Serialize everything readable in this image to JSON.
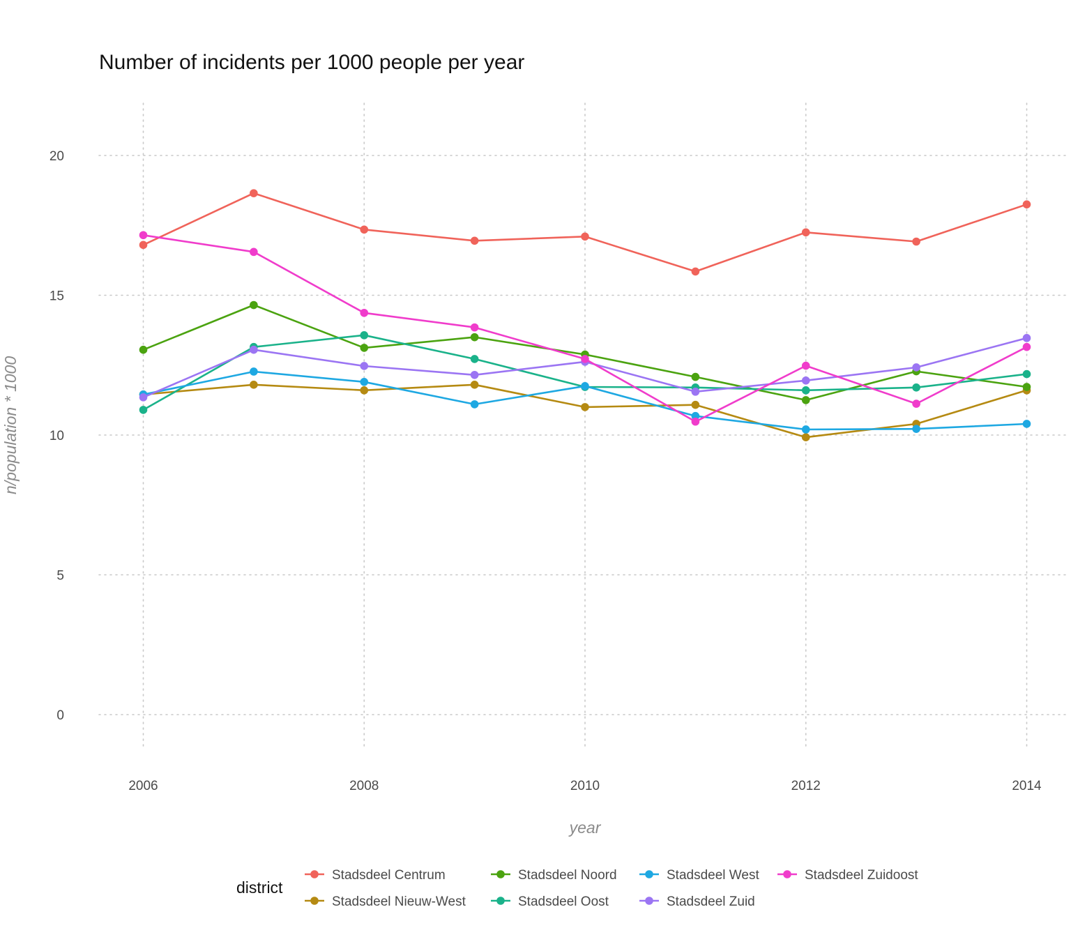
{
  "chart_data": {
    "type": "line",
    "title": "Number of incidents per 1000 people per year",
    "xlabel": "year",
    "ylabel": "n/population * 1000",
    "x": [
      2006,
      2007,
      2008,
      2009,
      2010,
      2011,
      2012,
      2013,
      2014
    ],
    "x_ticks": [
      2006,
      2008,
      2010,
      2012,
      2014
    ],
    "y_ticks": [
      0,
      5,
      10,
      15,
      20
    ],
    "xlim": [
      2005.8,
      2014.2
    ],
    "ylim": [
      -1,
      22
    ],
    "grid": true,
    "legend_title": "district",
    "legend_position": "bottom",
    "series": [
      {
        "name": "Stadsdeel Centrum",
        "color": "#F0635A",
        "values": [
          16.8,
          18.65,
          17.35,
          16.95,
          17.1,
          15.85,
          17.25,
          16.92,
          18.25
        ]
      },
      {
        "name": "Stadsdeel Nieuw-West",
        "color": "#B58A12",
        "values": [
          11.45,
          11.8,
          11.6,
          11.8,
          11.0,
          11.08,
          9.92,
          10.4,
          11.6
        ]
      },
      {
        "name": "Stadsdeel Noord",
        "color": "#4BA310",
        "values": [
          13.05,
          14.65,
          13.12,
          13.5,
          12.88,
          12.08,
          11.25,
          12.28,
          11.72
        ]
      },
      {
        "name": "Stadsdeel Oost",
        "color": "#1AB28A",
        "values": [
          10.9,
          13.15,
          13.57,
          12.72,
          11.72,
          11.7,
          11.6,
          11.7,
          12.18
        ]
      },
      {
        "name": "Stadsdeel West",
        "color": "#1EA8E2",
        "values": [
          11.45,
          12.27,
          11.9,
          11.1,
          11.75,
          10.68,
          10.2,
          10.22,
          10.4
        ]
      },
      {
        "name": "Stadsdeel Zuid",
        "color": "#9B75F3",
        "values": [
          11.35,
          13.05,
          12.47,
          12.15,
          12.62,
          11.55,
          11.95,
          12.42,
          13.47
        ]
      },
      {
        "name": "Stadsdeel Zuidoost",
        "color": "#F03CCB",
        "values": [
          17.15,
          16.55,
          14.37,
          13.85,
          12.72,
          10.48,
          12.48,
          11.12,
          13.15
        ]
      }
    ]
  }
}
